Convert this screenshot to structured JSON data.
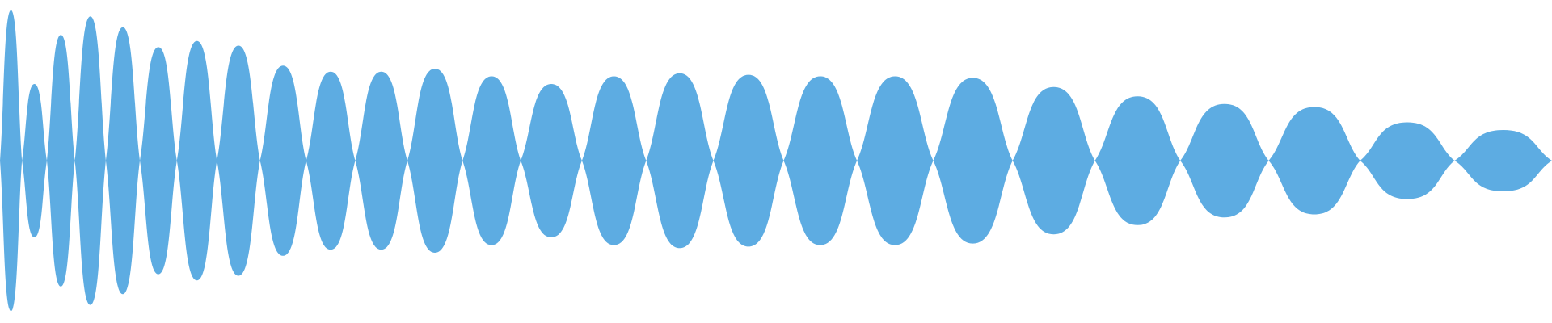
{
  "chart_data": {
    "type": "area",
    "title": "",
    "xlabel": "",
    "ylabel": "",
    "grid": false,
    "legend": "none",
    "color": "#5DACE2",
    "xlim": [
      0,
      32
    ],
    "ylim": [
      -1,
      1
    ],
    "envelope": "symmetric",
    "series": [
      {
        "values": [
          0.98,
          0.5,
          0.82,
          0.94,
          0.87,
          0.74,
          0.78,
          0.75,
          0.62,
          0.58,
          0.58,
          0.6,
          0.55,
          0.5,
          0.55,
          0.57,
          0.56,
          0.55,
          0.55,
          0.54,
          0.48,
          0.42,
          0.37,
          0.35,
          0.25,
          0.2
        ]
      }
    ]
  }
}
